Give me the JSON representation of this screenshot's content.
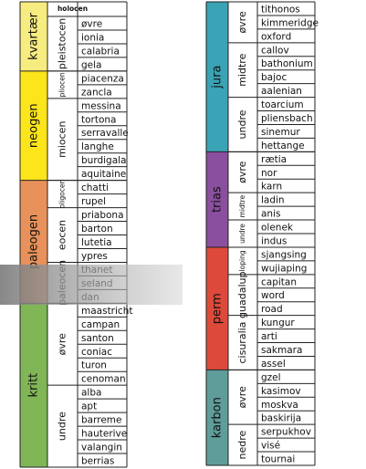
{
  "left": {
    "periods": [
      {
        "name": "kvartær",
        "color": "#f7ec80",
        "epochs": [
          {
            "name": "holocen",
            "stages": []
          },
          {
            "name": "pleistocen",
            "stages": [
              "øvre",
              "ionia",
              "calabria",
              "gela"
            ]
          }
        ]
      },
      {
        "name": "neogen",
        "color": "#fde51c",
        "epochs": [
          {
            "name": "pliocen",
            "stages": [
              "piacenza",
              "zancla"
            ]
          },
          {
            "name": "miocen",
            "stages": [
              "messina",
              "tortona",
              "serravalle",
              "langhe",
              "burdigala",
              "aquitaine"
            ]
          }
        ]
      },
      {
        "name": "paleogen",
        "color": "#e8915a",
        "epochs": [
          {
            "name": "oligocen",
            "stages": [
              "chatti",
              "rupel"
            ]
          },
          {
            "name": "eocen",
            "stages": [
              "priabona",
              "barton",
              "lutetia",
              "ypres"
            ]
          },
          {
            "name": "paleocen",
            "stages": [
              "thanet",
              "seland",
              "dan"
            ]
          }
        ]
      },
      {
        "name": "kritt",
        "color": "#80b656",
        "epochs": [
          {
            "name": "øvre",
            "stages": [
              "maastricht",
              "campan",
              "santon",
              "coniac",
              "turon",
              "cenoman"
            ]
          },
          {
            "name": "undre",
            "stages": [
              "alba",
              "apt",
              "barreme",
              "hauterive",
              "valangin",
              "berrias"
            ]
          }
        ]
      }
    ]
  },
  "right": {
    "periods": [
      {
        "name": "jura",
        "color": "#3aa3b5",
        "epochs": [
          {
            "name": "øvre",
            "stages": [
              "tithonos",
              "kimmeridge",
              "oxford"
            ]
          },
          {
            "name": "midtre",
            "stages": [
              "callov",
              "bathonium",
              "bajoc",
              "aalenian"
            ]
          },
          {
            "name": "undre",
            "stages": [
              "toarcium",
              "pliensbach",
              "sinemur",
              "hettange"
            ]
          }
        ]
      },
      {
        "name": "trias",
        "color": "#8a4f9f",
        "epochs": [
          {
            "name": "øvre",
            "stages": [
              "rætia",
              "nor",
              "karn"
            ]
          },
          {
            "name": "midtre",
            "stages": [
              "ladin",
              "anis"
            ]
          },
          {
            "name": "undre",
            "stages": [
              "olenek",
              "indus"
            ]
          }
        ]
      },
      {
        "name": "perm",
        "color": "#dd4a3b",
        "epochs": [
          {
            "name": "loping",
            "stages": [
              "sjangsing",
              "wujiaping"
            ]
          },
          {
            "name": "guadalup",
            "stages": [
              "capitan",
              "word",
              "road"
            ]
          },
          {
            "name": "cisuralia",
            "stages": [
              "kungur",
              "arti",
              "sakmara",
              "assel"
            ]
          }
        ]
      },
      {
        "name": "karbon",
        "color": "#5f9d9b",
        "epochs": [
          {
            "name": "øvre",
            "stages": [
              "gzel",
              "kasimov",
              "moskva",
              "baskirija"
            ]
          },
          {
            "name": "nedre",
            "stages": [
              "serpukhov",
              "visé",
              "tournai"
            ]
          }
        ]
      }
    ]
  }
}
